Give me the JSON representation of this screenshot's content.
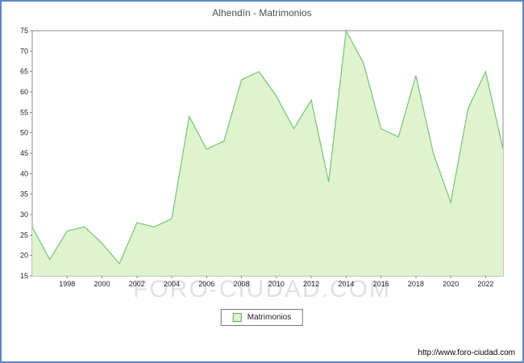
{
  "title": "Alhendín - Matrimonios",
  "watermark": "FORO-CIUDAD.COM",
  "legend": {
    "label": "Matrimonios"
  },
  "footer": {
    "url": "http://www.foro-ciudad.com"
  },
  "colors": {
    "window_border": "#5b87c5",
    "plot_border": "#8a8a8a",
    "area_fill": "#dff3cf",
    "line": "#7cc87c",
    "legend_swatch_border": "#5aa75a",
    "title_text": "#4f4f4f"
  },
  "chart_data": {
    "type": "area",
    "title": "Alhendín - Matrimonios",
    "series_name": "Matrimonios",
    "x": [
      1996,
      1997,
      1998,
      1999,
      2000,
      2001,
      2002,
      2003,
      2004,
      2005,
      2006,
      2007,
      2008,
      2009,
      2010,
      2011,
      2012,
      2013,
      2014,
      2015,
      2016,
      2017,
      2018,
      2019,
      2020,
      2021,
      2022,
      2023
    ],
    "values": [
      27,
      19,
      26,
      27,
      23,
      18,
      28,
      27,
      29,
      54,
      46,
      48,
      63,
      65,
      59,
      51,
      58,
      38,
      75,
      67,
      51,
      49,
      64,
      45,
      33,
      56,
      65,
      46
    ],
    "ylim": [
      15,
      75
    ],
    "ytick_step": 5,
    "xtick_labels": [
      "1998",
      "2000",
      "2002",
      "2004",
      "2006",
      "2008",
      "2010",
      "2012",
      "2014",
      "2016",
      "2018",
      "2020",
      "2022"
    ],
    "grid": false,
    "legend_position": "bottom-center"
  }
}
